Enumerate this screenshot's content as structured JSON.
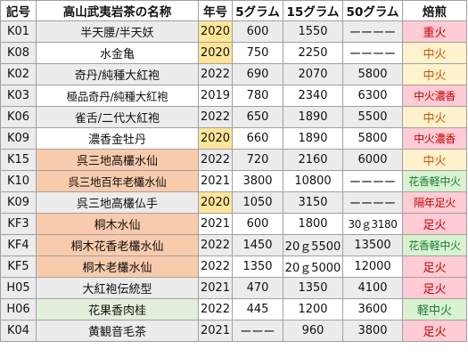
{
  "headers": {
    "code": "記号",
    "name": "高山武夷岩茶の名称",
    "year": "年号",
    "g5": "5グラム",
    "g15": "15グラム",
    "g50": "50グラム",
    "roast": "焙煎"
  },
  "rows": [
    {
      "code": "K01",
      "name": "半天腰/半天妖",
      "year": "2020",
      "g5": "600",
      "g15": "1550",
      "g50": "ーーーー",
      "roast": "重火"
    },
    {
      "code": "K08",
      "name": "水金亀",
      "year": "2020",
      "g5": "750",
      "g15": "2250",
      "g50": "ーーーー",
      "roast": "中火"
    },
    {
      "code": "K02",
      "name": "奇丹/純種大紅袍",
      "year": "2022",
      "g5": "690",
      "g15": "2070",
      "g50": "5800",
      "roast": "中火"
    },
    {
      "code": "K03",
      "name": "極品奇丹/純種大紅袍",
      "year": "2019",
      "g5": "780",
      "g15": "2340",
      "g50": "6300",
      "roast": "中火濃香"
    },
    {
      "code": "K06",
      "name": "雀舌/二代大紅袍",
      "year": "2022",
      "g5": "650",
      "g15": "1890",
      "g50": "5500",
      "roast": "中火"
    },
    {
      "code": "K09",
      "name": "濃香金牡丹",
      "year": "2020",
      "g5": "660",
      "g15": "1890",
      "g50": "5800",
      "roast": "中火濃香"
    },
    {
      "code": "K15",
      "name": "呉三地高欉水仙",
      "year": "2022",
      "g5": "720",
      "g15": "2160",
      "g50": "6000",
      "roast": "中火"
    },
    {
      "code": "K10",
      "name": "呉三地百年老欉水仙",
      "year": "2021",
      "g5": "3800",
      "g15": "10800",
      "g50": "ーーーー",
      "roast": "花香軽中火"
    },
    {
      "code": "K09",
      "name": "呉三地高欉仏手",
      "year": "2020",
      "g5": "1050",
      "g15": "3150",
      "g50": "ーーーー",
      "roast": "隔年足火"
    },
    {
      "code": "KF3",
      "name": "桐木水仙",
      "year": "2021",
      "g5": "600",
      "g15": "1800",
      "g50": "30ｇ3180",
      "roast": "足火"
    },
    {
      "code": "KF4",
      "name": "桐木花香老欉水仙",
      "year": "2022",
      "g5": "1450",
      "g15": "20ｇ5500",
      "g50": "13500",
      "roast": "花香軽中火"
    },
    {
      "code": "KF5",
      "name": "桐木老欉水仙",
      "year": "2022",
      "g5": "1350",
      "g15": "20ｇ5000",
      "g50": "12000",
      "roast": "足火"
    },
    {
      "code": "H05",
      "name": "大紅袍伝統型",
      "year": "2021",
      "g5": "470",
      "g15": "1350",
      "g50": "4100",
      "roast": "足火"
    },
    {
      "code": "H06",
      "name": "花果香肉桂",
      "year": "2022",
      "g5": "445",
      "g15": "1200",
      "g50": "3600",
      "roast": "軽中火"
    },
    {
      "code": "K04",
      "name": "黄観音毛茶",
      "year": "2021",
      "g5": "ーーー",
      "g15": "960",
      "g50": "3800",
      "roast": "足火"
    }
  ],
  "colors": {
    "header_bg": "#ffffff",
    "code_bg": "#ececec",
    "gray_bg": "#ececec",
    "white_bg": "#ffffff",
    "year_highlight": "#ffe699",
    "name_orange": "#f8cbad",
    "name_green": "#e2efda",
    "roast_red": "#ffccd5",
    "roast_yellow": "#fff2cc",
    "roast_green": "#d9f2d0",
    "roast_red_text": "#c00000",
    "roast_orange_text": "#c65911",
    "roast_green_text": "#1e7b34"
  }
}
